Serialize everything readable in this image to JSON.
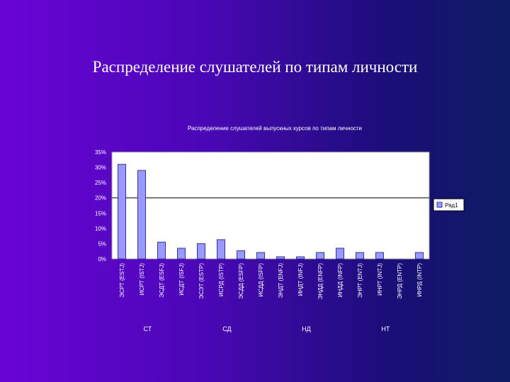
{
  "slide": {
    "title": "Распределение слушателей по типам личности"
  },
  "chart_data": {
    "type": "bar",
    "title": "Распределение слушателей выпускных курсов по типам личности",
    "categories": [
      "ЭСРТ (ESTJ)",
      "ИСРТ (ISTJ)",
      "ЭСДТ (ESFJ)",
      "ИСДТ (ISFJ)",
      "ЭСЭТ (ESTP)",
      "ИСРД (ISTP)",
      "ЭСДД (ESFP)",
      "ИСДД (ISFP)",
      "ЭНДТ (ENFJ)",
      "ИНДТ (INFJ)",
      "ЭНДД (ENFP)",
      "ИНДД (INFP)",
      "ЭНРТ (ENTJ)",
      "ИНРТ (INTJ)",
      "ЭНРД (ENTP)",
      "ИНРД (INTP)"
    ],
    "series": [
      {
        "name": "Ряд1",
        "values": [
          31,
          29,
          5.5,
          3.5,
          5,
          6.3,
          2.7,
          2.1,
          0.7,
          0.7,
          2.1,
          3.5,
          2.1,
          2.1,
          0,
          2.1
        ]
      }
    ],
    "ylim": [
      0,
      35
    ],
    "yticks": [
      "0%",
      "5%",
      "10%",
      "15%",
      "20%",
      "25%",
      "30%",
      "35%"
    ],
    "group_labels": [
      "СТ",
      "СД",
      "НД",
      "НТ"
    ],
    "grid": "horizontal at 20% and 35%",
    "legend": "right",
    "colors": {
      "bar_fill": "#9999ff",
      "bar_stroke": "#333399",
      "plot_bg": "#ffffff",
      "chart_text": "#ffffff"
    }
  }
}
